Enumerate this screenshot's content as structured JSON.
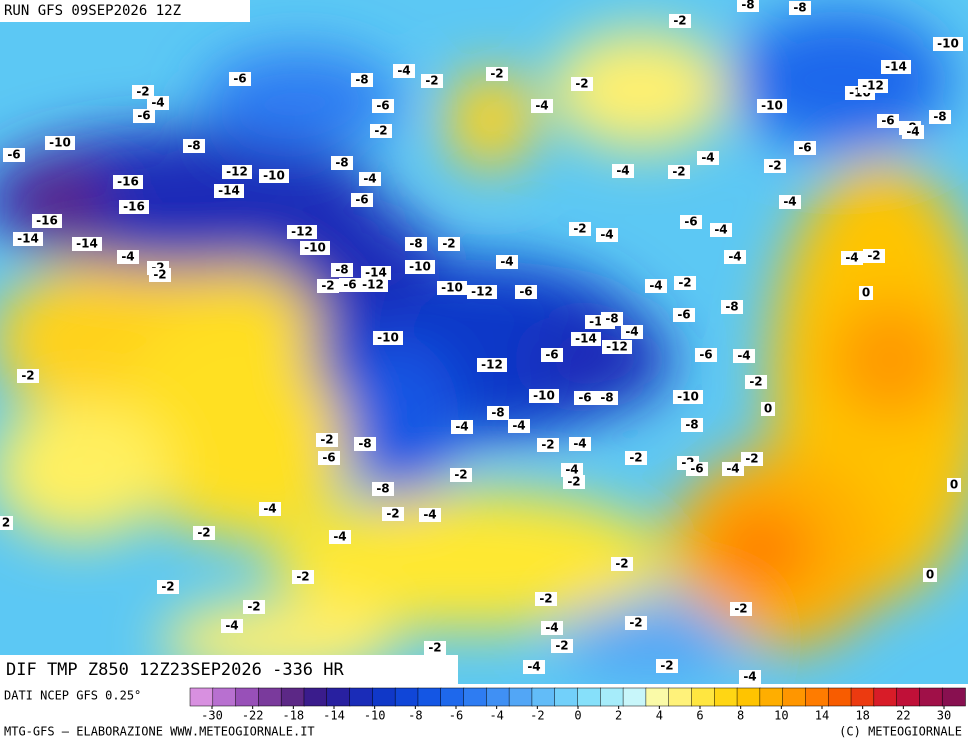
{
  "header": {
    "run": "RUN GFS 09SEP2026 12Z"
  },
  "map": {
    "title": "DIF TMP Z850 12Z23SEP2026 -336 HR",
    "labels": [
      -2,
      -4,
      -6,
      -6,
      -8,
      -4,
      -2,
      -2,
      -2,
      -2,
      -8,
      -8,
      -10,
      -14,
      -10,
      -12,
      -4,
      -6,
      -2,
      -8,
      -10,
      -12,
      -10,
      -16,
      -14,
      -16,
      -16,
      -14,
      -14,
      -8,
      -4,
      -6,
      -12,
      -10,
      -8,
      -2,
      -2,
      -4,
      -6,
      -4,
      -4,
      -2,
      -4,
      -2,
      -4,
      -4,
      -10,
      -8,
      -14,
      -10,
      -12,
      -6,
      -2,
      -6,
      -12,
      -10,
      -10,
      -8,
      -4,
      -14,
      -12,
      -12,
      -6,
      -2,
      -4,
      -4,
      -4,
      -2,
      0,
      -8,
      -6,
      -6,
      -4,
      -2,
      0,
      -10,
      -6,
      -8,
      -10,
      -8,
      -8,
      -4,
      -4,
      -2,
      -4,
      -8,
      -2,
      -6,
      -2,
      -2,
      -6,
      -4,
      -2,
      -4,
      -2,
      -2,
      -8,
      -4,
      -2,
      -4,
      -2,
      -4,
      -2,
      -2,
      -2,
      -4,
      -2,
      -2,
      -2,
      -2,
      0,
      -4,
      -2,
      -2,
      -4,
      -2,
      -4,
      -2,
      2,
      0,
      -8,
      -6,
      -8,
      -4,
      -6,
      -10,
      -4,
      -2,
      -2,
      -6
    ]
  },
  "legend": {
    "source": "DATI NCEP GFS 0.25°",
    "colors": [
      "#d890e0",
      "#b870d0",
      "#9850b8",
      "#7a3a9c",
      "#5c2886",
      "#3a1c8c",
      "#2820a0",
      "#1a2cb8",
      "#1038c8",
      "#1046d8",
      "#1456e4",
      "#1e68ec",
      "#2e7cf2",
      "#4090f4",
      "#52a6f6",
      "#62bcf8",
      "#72d0fa",
      "#86e0fa",
      "#a6ecfa",
      "#c8f6fa",
      "#fafaa8",
      "#fff27a",
      "#ffe640",
      "#ffd614",
      "#ffc400",
      "#ffae00",
      "#ff9600",
      "#ff7c00",
      "#f85c00",
      "#ec3a10",
      "#d81c28",
      "#c01038",
      "#a01048",
      "#881050"
    ],
    "ticks": [
      -30,
      -22,
      -18,
      -14,
      -10,
      -8,
      -6,
      -4,
      -2,
      0,
      2,
      4,
      6,
      8,
      10,
      14,
      18,
      22,
      30
    ]
  },
  "footer": {
    "left": "MTG-GFS — ELABORAZIONE WWW.METEOGIORNALE.IT",
    "right": "(C) METEOGIORNALE"
  }
}
